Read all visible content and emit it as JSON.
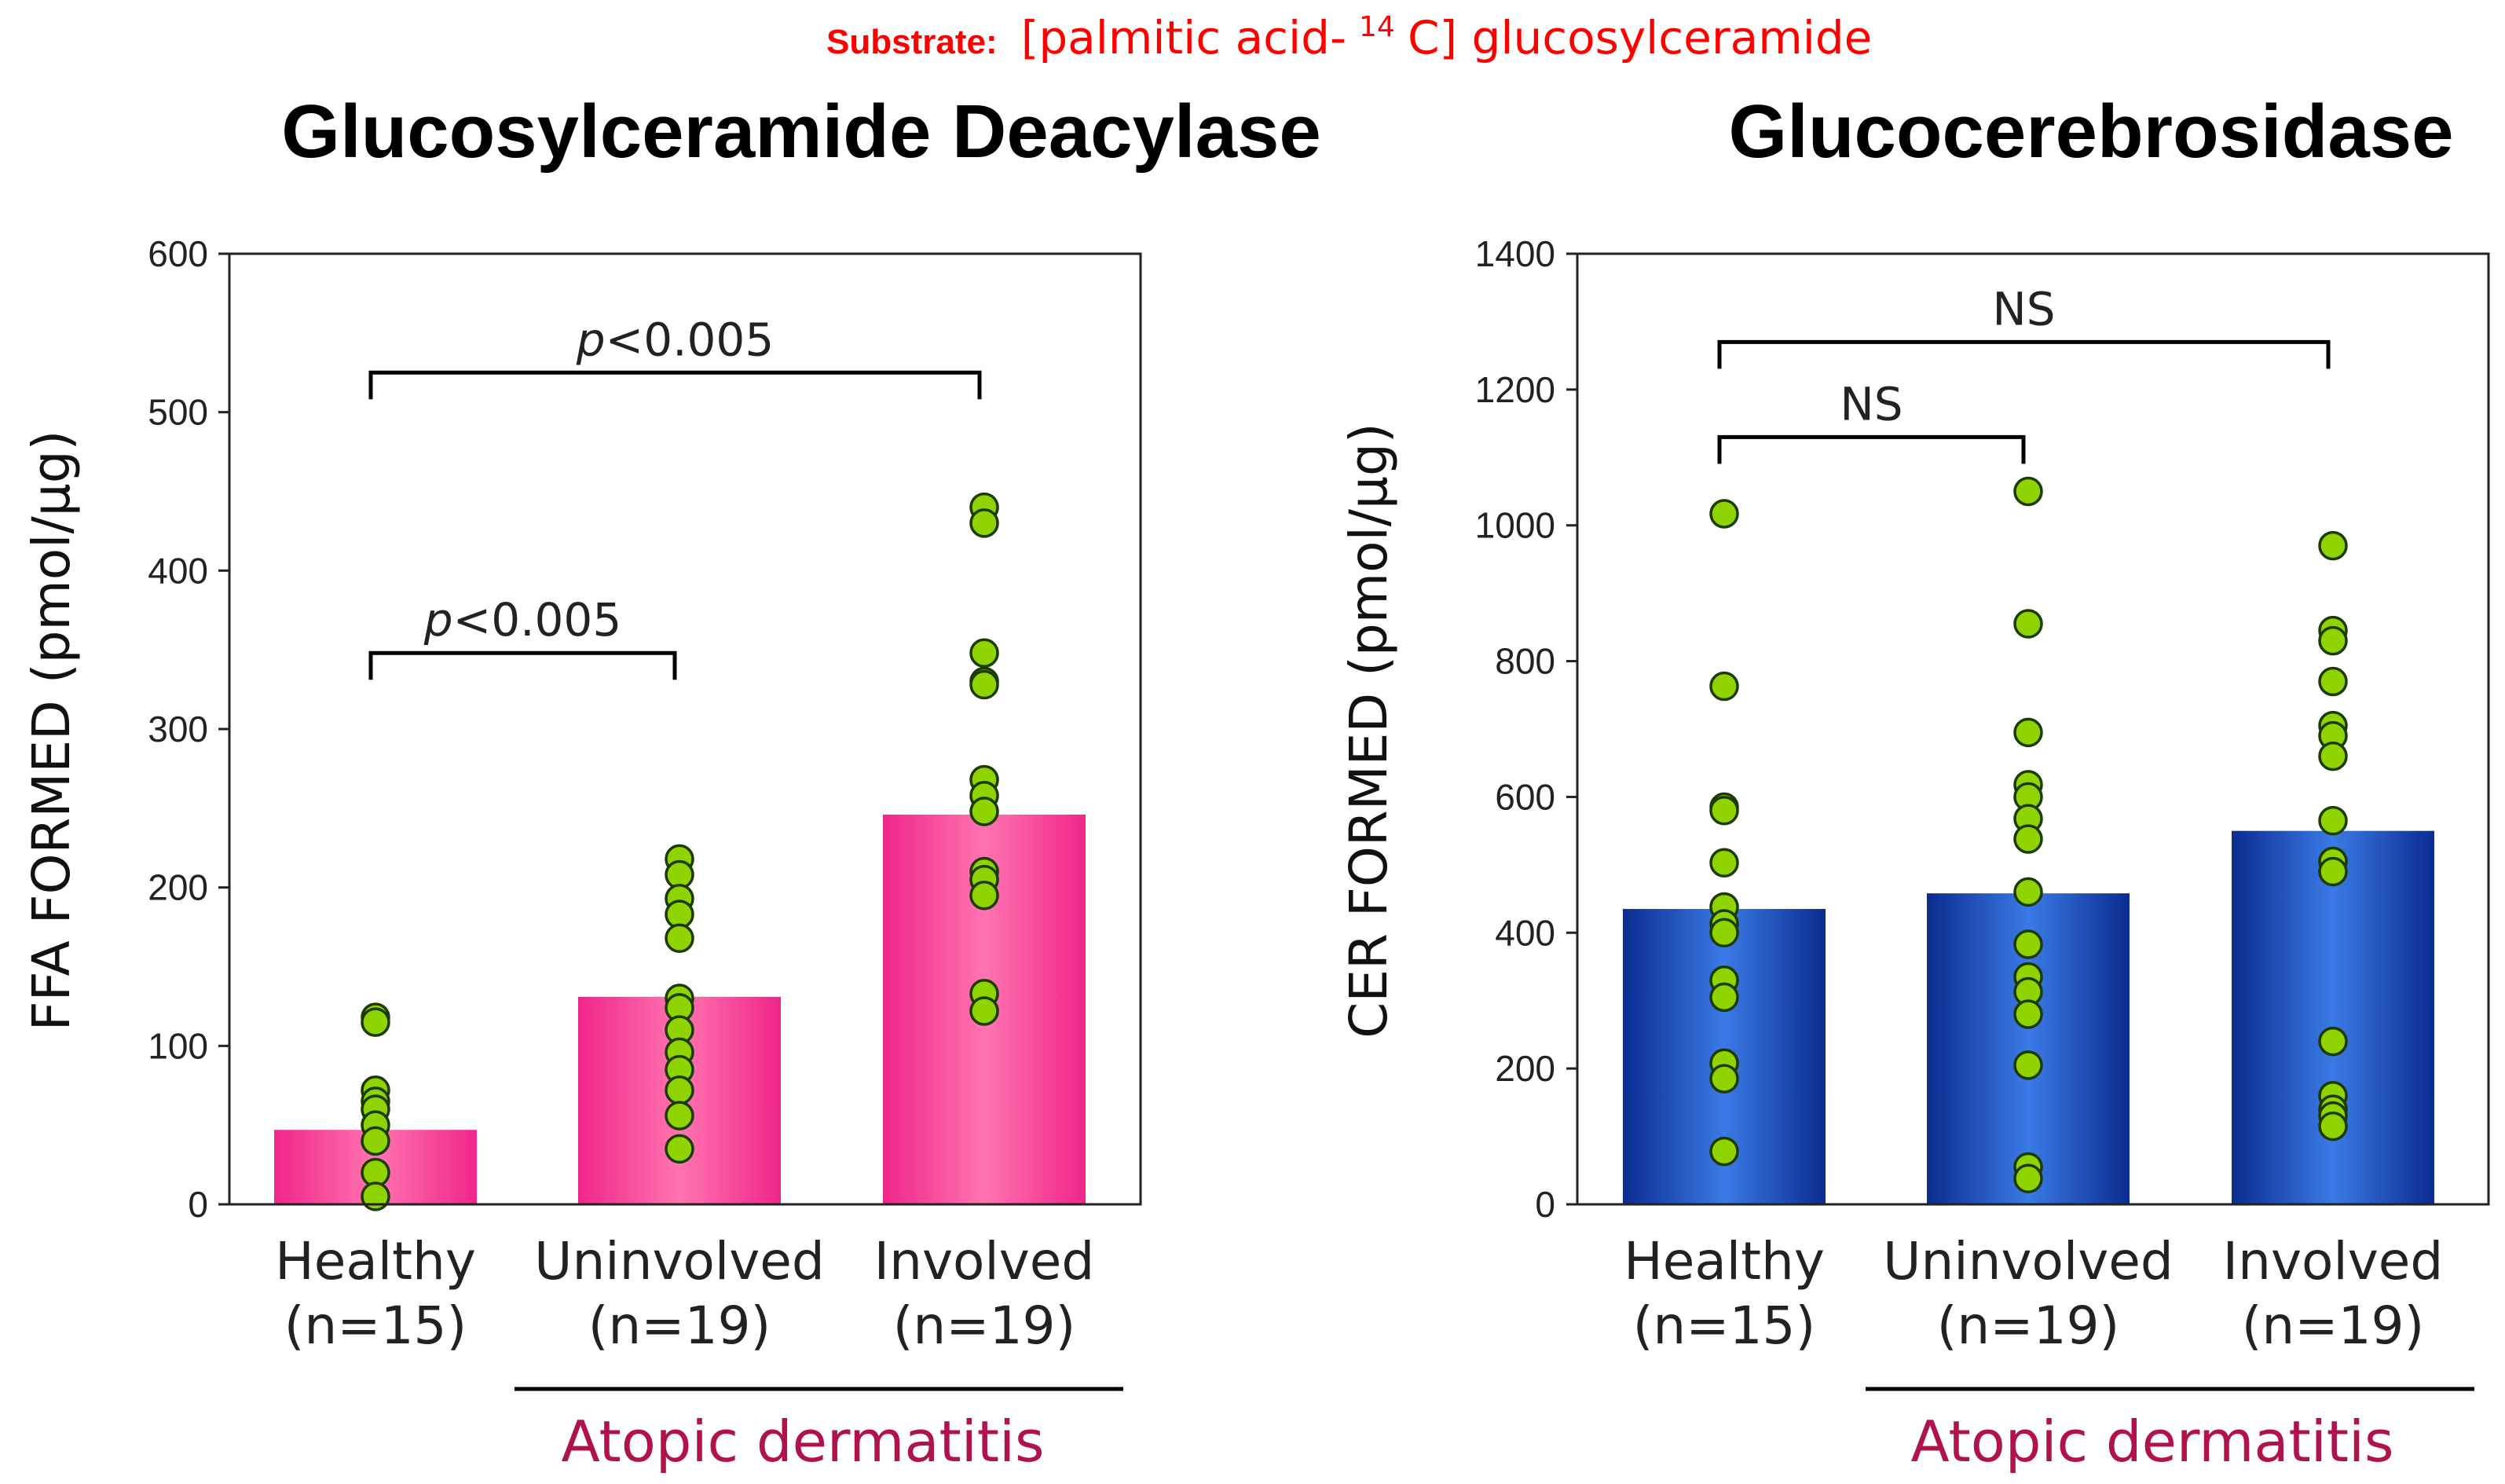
{
  "header": {
    "substrate_label": "Substrate:",
    "substrate_value_pre": "[palmitic acid-",
    "substrate_value_sup": "14",
    "substrate_value_post": "C] glucosylceramide"
  },
  "colors": {
    "pink_edge": "#f0268a",
    "pink_center": "#ff74b0",
    "blue_edge": "#0b2c8f",
    "blue_center": "#3a7ae6",
    "points": "#8fd400",
    "group_label": "#b0124e",
    "substrate": "#ff0000"
  },
  "chart_data": [
    {
      "type": "bar",
      "title": "Glucosylceramide Deacylase",
      "ylabel": "FFA FORMED (pmol/μg)",
      "xlabel": "",
      "ylim": [
        0,
        600
      ],
      "yticks": [
        "0",
        "100",
        "200",
        "300",
        "400",
        "500",
        "600"
      ],
      "categories": [
        "Healthy",
        "Uninvolved",
        "Involved"
      ],
      "category_sublabels": [
        "(n=15)",
        "(n=19)",
        "(n=19)"
      ],
      "group_label": "Atopic dermatitis",
      "values": [
        47,
        131,
        246
      ],
      "bar_style": "pink",
      "points": [
        [
          118,
          115,
          72,
          65,
          60,
          50,
          40,
          20,
          5
        ],
        [
          218,
          208,
          193,
          183,
          168,
          130,
          124,
          110,
          96,
          85,
          72,
          56,
          35
        ],
        [
          440,
          430,
          348,
          330,
          328,
          268,
          258,
          248,
          210,
          205,
          195,
          133,
          122
        ]
      ],
      "annotations": [
        {
          "from": 0,
          "to": 1,
          "y": 348,
          "text_p": "p",
          "text_rest": "<0.005"
        },
        {
          "from": 0,
          "to": 2,
          "y": 525,
          "text_p": "p",
          "text_rest": "<0.005"
        }
      ]
    },
    {
      "type": "bar",
      "title": "Glucocerebrosidase",
      "ylabel": "CER FORMED (pmol/μg)",
      "xlabel": "",
      "ylim": [
        0,
        1400
      ],
      "yticks": [
        "0",
        "200",
        "400",
        "600",
        "800",
        "1000",
        "1200",
        "1400"
      ],
      "categories": [
        "Healthy",
        "Uninvolved",
        "Involved"
      ],
      "category_sublabels": [
        "(n=15)",
        "(n=19)",
        "(n=19)"
      ],
      "group_label": "Atopic dermatitis",
      "values": [
        435,
        458,
        550
      ],
      "bar_style": "blue",
      "points": [
        [
          1017,
          763,
          585,
          580,
          503,
          438,
          413,
          400,
          330,
          305,
          208,
          185,
          78
        ],
        [
          1050,
          855,
          695,
          618,
          600,
          568,
          538,
          460,
          383,
          335,
          313,
          280,
          205,
          55,
          38
        ],
        [
          970,
          845,
          830,
          770,
          705,
          690,
          660,
          565,
          505,
          490,
          240,
          160,
          140,
          130,
          115
        ]
      ],
      "annotations": [
        {
          "from": 0,
          "to": 1,
          "y": 1130,
          "text_p": "",
          "text_rest": "NS"
        },
        {
          "from": 0,
          "to": 2,
          "y": 1270,
          "text_p": "",
          "text_rest": "NS"
        }
      ]
    }
  ]
}
